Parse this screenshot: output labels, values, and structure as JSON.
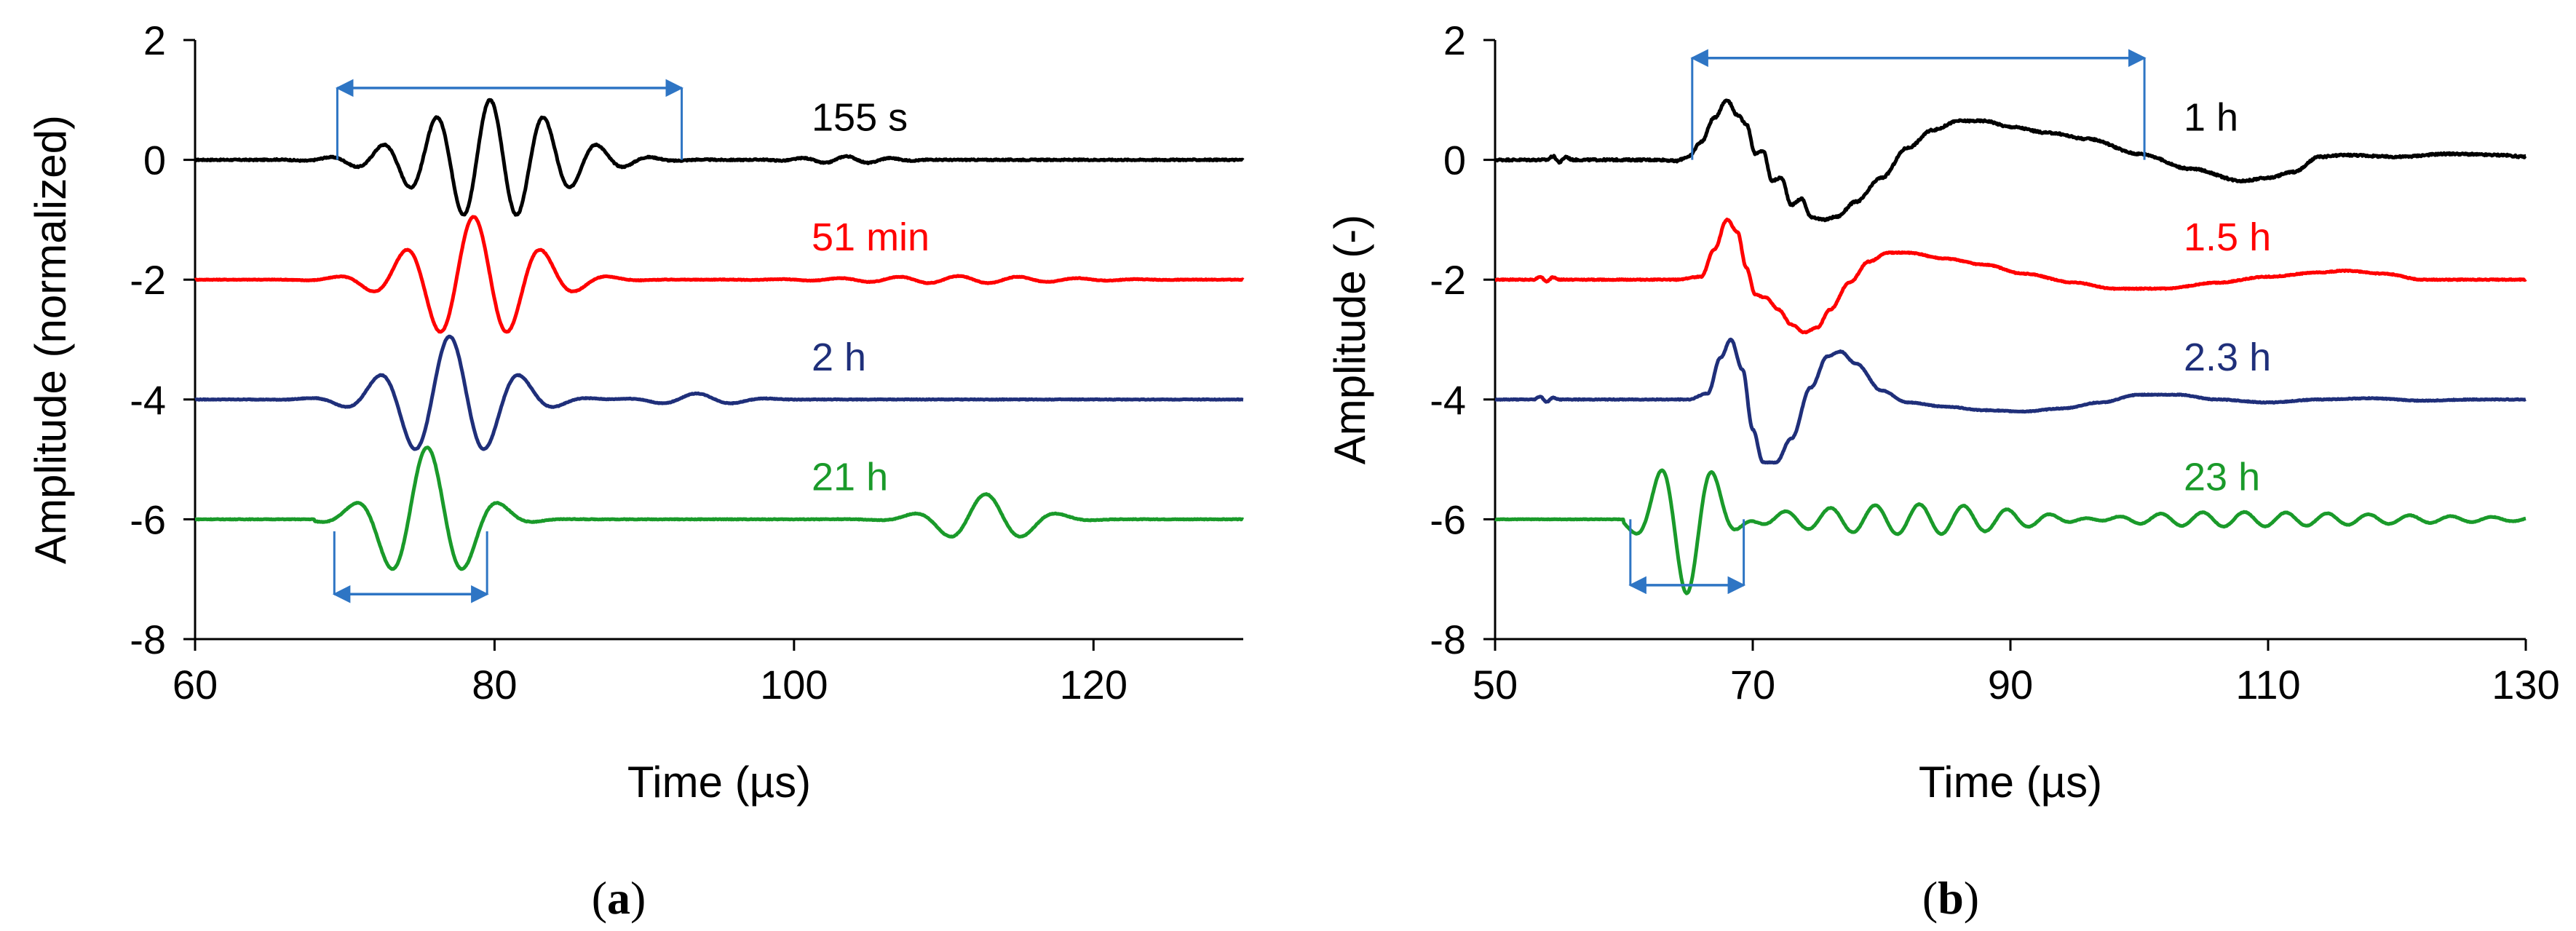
{
  "chart_data": [
    {
      "type": "line",
      "panel_label": "(a)",
      "panel_letter": "a",
      "xlabel": "Time (µs)",
      "ylabel": "Amplitude (normalized)",
      "xlim": [
        60,
        130
      ],
      "ylim": [
        -8,
        2
      ],
      "xticks": [
        60,
        80,
        100,
        120
      ],
      "yticks": [
        2,
        0,
        -2,
        -4,
        -6,
        -8
      ],
      "series": [
        {
          "name": "155 s",
          "color": "#000000",
          "offset": 0,
          "waves": [
            {
              "t0": 79.7,
              "sigma": 4.3,
              "period": 3.6,
              "amp": 1.0
            },
            {
              "t0": 103.5,
              "sigma": 2.5,
              "period": 3.0,
              "amp": 0.06
            }
          ],
          "noise": 0.02
        },
        {
          "name": "51 min",
          "color": "#ff0000",
          "offset": -2,
          "waves": [
            {
              "t0": 78.6,
              "sigma": 3.7,
              "period": 4.6,
              "amp": 1.05
            },
            {
              "t0": 111.0,
              "sigma": 6.0,
              "period": 4.0,
              "amp": 0.06
            }
          ],
          "noise": 0.01
        },
        {
          "name": "2 h",
          "color": "#1f2f7a",
          "offset": -4,
          "waves": [
            {
              "t0": 77.0,
              "sigma": 3.4,
              "period": 4.8,
              "amp": 1.05
            },
            {
              "t0": 93.5,
              "sigma": 2.5,
              "period": 5.0,
              "amp": 0.1
            }
          ],
          "noise": 0.01
        },
        {
          "name": "21 h",
          "color": "#1a9a2a",
          "offset": -6,
          "waves": [
            {
              "t0": 75.5,
              "sigma": 2.8,
              "period": 5.0,
              "amp": 1.2
            },
            {
              "t0": 112.8,
              "sigma": 2.8,
              "period": 5.0,
              "amp": 0.42
            }
          ],
          "start": 68,
          "noise": 0.01
        }
      ],
      "annotations": [
        {
          "type": "double-arrow",
          "x1": 69.5,
          "x2": 92.5,
          "y": 1.2,
          "tick_bottom": 0.0
        },
        {
          "type": "double-arrow",
          "x1": 69.3,
          "x2": 79.5,
          "y": -7.25,
          "tick_top": -6.2
        }
      ]
    },
    {
      "type": "line",
      "panel_label": "(b)",
      "panel_letter": "b",
      "xlabel": "Time (µs)",
      "ylabel": "Amplitude (-)",
      "xlim": [
        50,
        130
      ],
      "ylim": [
        -8,
        2
      ],
      "xticks": [
        50,
        70,
        90,
        110,
        130
      ],
      "yticks": [
        2,
        0,
        -2,
        -4,
        -6,
        -8
      ],
      "series": [
        {
          "name": "1 h",
          "color": "#000000",
          "offset": 0,
          "points": [
            [
              50,
              0
            ],
            [
              54,
              0
            ],
            [
              54.5,
              0.06
            ],
            [
              55,
              -0.04
            ],
            [
              55.5,
              0.05
            ],
            [
              56,
              0
            ],
            [
              63,
              0
            ],
            [
              64,
              -0.02
            ],
            [
              65,
              0.05
            ],
            [
              66,
              0.3
            ],
            [
              67,
              0.7
            ],
            [
              68,
              1.0
            ],
            [
              68.8,
              0.75
            ],
            [
              69.5,
              0.6
            ],
            [
              70.2,
              0.1
            ],
            [
              70.8,
              0.15
            ],
            [
              71.5,
              -0.35
            ],
            [
              72.2,
              -0.3
            ],
            [
              73,
              -0.75
            ],
            [
              73.8,
              -0.65
            ],
            [
              74.5,
              -0.95
            ],
            [
              75.5,
              -1.0
            ],
            [
              76.5,
              -0.95
            ],
            [
              78,
              -0.7
            ],
            [
              80,
              -0.3
            ],
            [
              82,
              0.2
            ],
            [
              84,
              0.5
            ],
            [
              86,
              0.65
            ],
            [
              88,
              0.65
            ],
            [
              90,
              0.55
            ],
            [
              93,
              0.45
            ],
            [
              96,
              0.35
            ],
            [
              100,
              0.1
            ],
            [
              104,
              -0.15
            ],
            [
              108,
              -0.35
            ],
            [
              110,
              -0.3
            ],
            [
              112,
              -0.2
            ],
            [
              114,
              0.05
            ],
            [
              116,
              0.08
            ],
            [
              120,
              0.05
            ],
            [
              124,
              0.1
            ],
            [
              128,
              0.08
            ],
            [
              130,
              0.05
            ]
          ],
          "noise": 0.03
        },
        {
          "name": "1.5 h",
          "color": "#ff0000",
          "offset": -2,
          "points": [
            [
              50,
              0
            ],
            [
              53,
              0
            ],
            [
              53.5,
              0.05
            ],
            [
              54,
              -0.03
            ],
            [
              54.5,
              0.04
            ],
            [
              55,
              0
            ],
            [
              64,
              0
            ],
            [
              66,
              0.05
            ],
            [
              67,
              0.5
            ],
            [
              68,
              1.0
            ],
            [
              68.8,
              0.8
            ],
            [
              69.5,
              0.2
            ],
            [
              70.2,
              -0.25
            ],
            [
              71,
              -0.3
            ],
            [
              72,
              -0.5
            ],
            [
              73,
              -0.75
            ],
            [
              74,
              -0.88
            ],
            [
              75,
              -0.8
            ],
            [
              76,
              -0.5
            ],
            [
              77.5,
              -0.05
            ],
            [
              79,
              0.3
            ],
            [
              80.5,
              0.45
            ],
            [
              82,
              0.45
            ],
            [
              85,
              0.35
            ],
            [
              88,
              0.25
            ],
            [
              91,
              0.1
            ],
            [
              95,
              -0.05
            ],
            [
              98,
              -0.15
            ],
            [
              102,
              -0.15
            ],
            [
              106,
              -0.05
            ],
            [
              110,
              0.05
            ],
            [
              114,
              0.12
            ],
            [
              116,
              0.15
            ],
            [
              119,
              0.1
            ],
            [
              122,
              0.0
            ],
            [
              126,
              0.0
            ],
            [
              130,
              0.0
            ]
          ],
          "noise": 0.015
        },
        {
          "name": "2.3 h",
          "color": "#1f2f7a",
          "offset": -4,
          "points": [
            [
              50,
              0
            ],
            [
              53,
              0
            ],
            [
              53.5,
              0.05
            ],
            [
              54,
              -0.04
            ],
            [
              54.5,
              0.03
            ],
            [
              55,
              0
            ],
            [
              65,
              0
            ],
            [
              66.5,
              0.1
            ],
            [
              67.5,
              0.7
            ],
            [
              68.3,
              1.0
            ],
            [
              69.2,
              0.5
            ],
            [
              70,
              -0.5
            ],
            [
              70.8,
              -1.05
            ],
            [
              71.8,
              -1.05
            ],
            [
              73,
              -0.65
            ],
            [
              74.5,
              0.2
            ],
            [
              75.8,
              0.72
            ],
            [
              76.8,
              0.8
            ],
            [
              78,
              0.6
            ],
            [
              80,
              0.15
            ],
            [
              82,
              -0.05
            ],
            [
              85,
              -0.12
            ],
            [
              88,
              -0.18
            ],
            [
              91,
              -0.2
            ],
            [
              94,
              -0.15
            ],
            [
              97,
              -0.05
            ],
            [
              100,
              0.08
            ],
            [
              103,
              0.08
            ],
            [
              106,
              0.0
            ],
            [
              110,
              -0.05
            ],
            [
              114,
              0.0
            ],
            [
              118,
              0.02
            ],
            [
              122,
              -0.02
            ],
            [
              126,
              0.0
            ],
            [
              130,
              0.0
            ]
          ],
          "noise": 0.012
        },
        {
          "name": "23 h",
          "color": "#1a9a2a",
          "offset": -6,
          "waves": [
            {
              "t0": 64.9,
              "sigma": 2.2,
              "period": 4.2,
              "amp": 1.25,
              "phase": 3.14159
            },
            {
              "t0": 83,
              "sigma": 10,
              "period": 3.5,
              "amp": 0.22
            },
            {
              "t0": 105,
              "sigma": 15,
              "period": 3.2,
              "amp": 0.12
            }
          ],
          "start": 60,
          "noise": 0.008
        }
      ],
      "annotations": [
        {
          "type": "double-arrow",
          "x1": 65.3,
          "x2": 100.4,
          "y": 1.7,
          "tick_bottom": 0.0
        },
        {
          "type": "double-arrow",
          "x1": 60.5,
          "x2": 69.3,
          "y": -7.1,
          "tick_top": -6.0
        }
      ]
    }
  ]
}
